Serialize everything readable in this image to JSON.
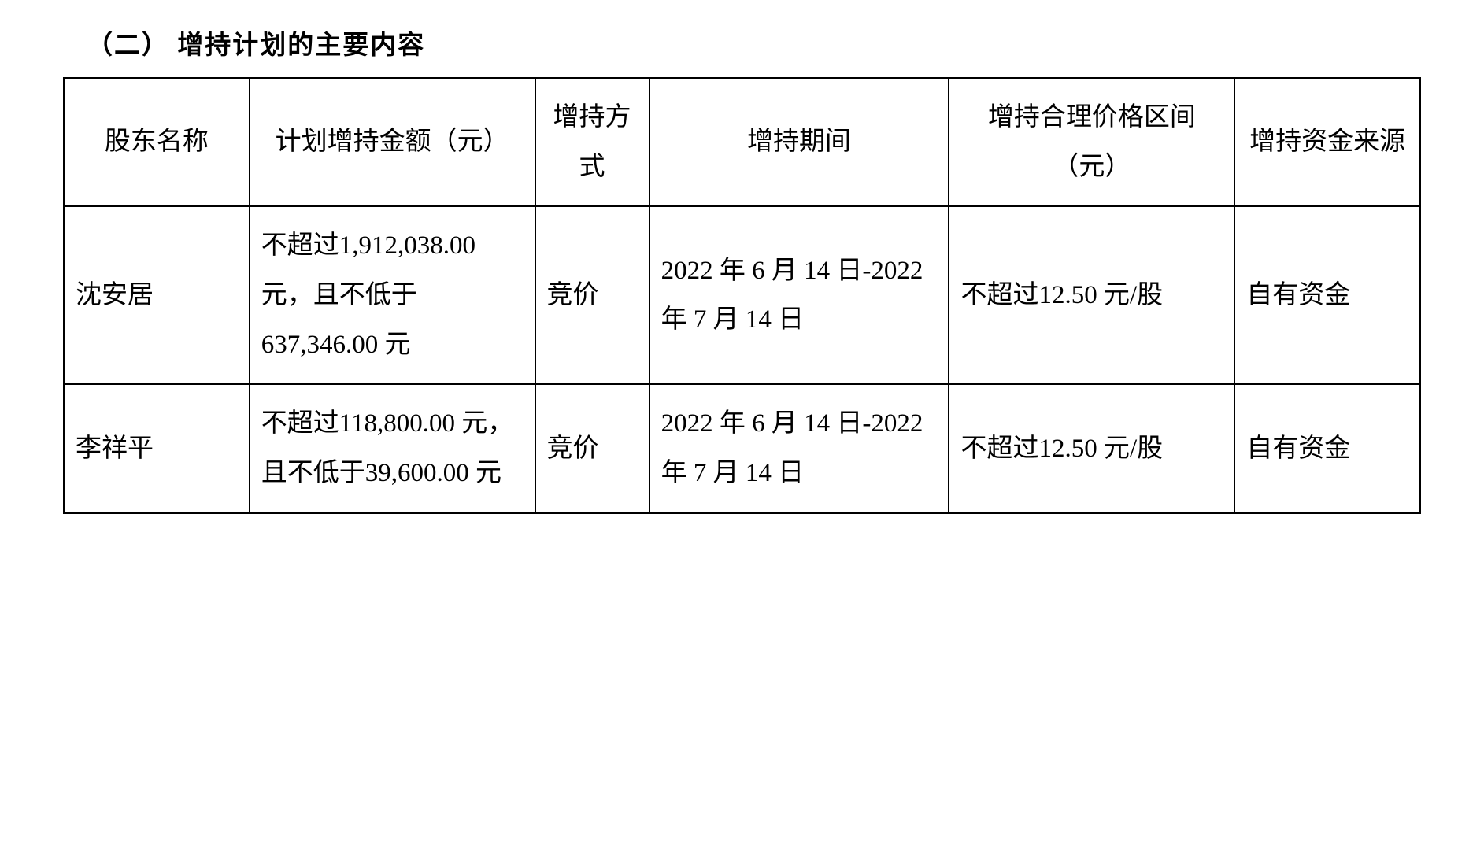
{
  "section": {
    "title": "（二） 增持计划的主要内容"
  },
  "table": {
    "type": "table",
    "border_color": "#000000",
    "background_color": "#ffffff",
    "text_color": "#000000",
    "font_size_pt": 25,
    "columns": [
      {
        "label": "股东名称",
        "width_pct": 13
      },
      {
        "label": "计划增持金额（元）",
        "width_pct": 20
      },
      {
        "label": "增持方式",
        "width_pct": 8
      },
      {
        "label": "增持期间",
        "width_pct": 21
      },
      {
        "label": "增持合理价格区间（元）",
        "width_pct": 20
      },
      {
        "label": "增持资金来源",
        "width_pct": 13
      }
    ],
    "rows": [
      {
        "shareholder_name": "沈安居",
        "planned_amount": "不超过1,912,038.00元，且不低于637,346.00 元",
        "method": "竞价",
        "period": "2022 年 6 月 14 日-2022 年 7 月 14 日",
        "price_range": "不超过12.50 元/股",
        "fund_source": "自有资金"
      },
      {
        "shareholder_name": "李祥平",
        "planned_amount": "不超过118,800.00 元，且不低于39,600.00 元",
        "method": "竞价",
        "period": "2022 年 6 月 14 日-2022 年 7 月 14 日",
        "price_range": "不超过12.50 元/股",
        "fund_source": "自有资金"
      }
    ]
  }
}
